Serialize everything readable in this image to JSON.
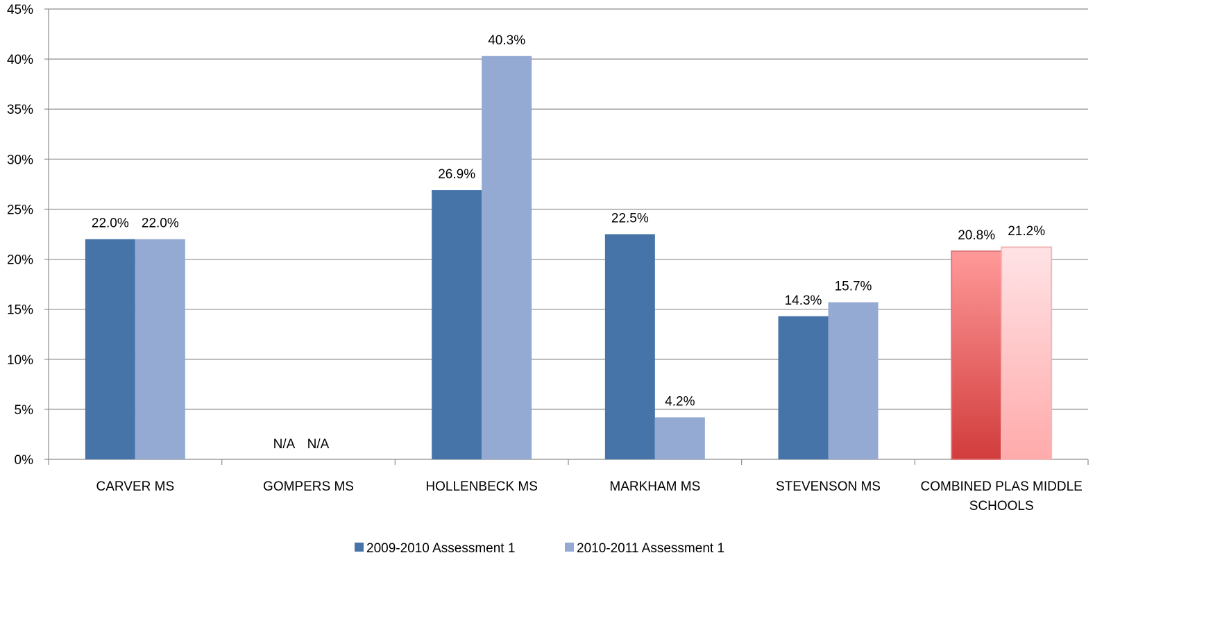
{
  "colors": {
    "series1": "#4674a8",
    "series2": "#95aad2",
    "highlight1_top": "#ff9999",
    "highlight1_bottom": "#d23c3c",
    "highlight2_top": "#ffe3e6",
    "highlight2_bottom": "#ffaaaa",
    "gridline": "#8c8c8c",
    "axis": "#8c8c8c"
  },
  "chart_data": {
    "type": "bar",
    "title": "",
    "xlabel": "",
    "ylabel": "",
    "ylim": [
      0,
      45
    ],
    "y_ticks": [
      {
        "value": 0,
        "label": "0%"
      },
      {
        "value": 5,
        "label": "5%"
      },
      {
        "value": 10,
        "label": "10%"
      },
      {
        "value": 15,
        "label": "15%"
      },
      {
        "value": 20,
        "label": "20%"
      },
      {
        "value": 25,
        "label": "25%"
      },
      {
        "value": 30,
        "label": "30%"
      },
      {
        "value": 35,
        "label": "35%"
      },
      {
        "value": 40,
        "label": "40%"
      },
      {
        "value": 45,
        "label": "45%"
      }
    ],
    "grid": true,
    "legend_position": "bottom",
    "categories": [
      "CARVER MS",
      "GOMPERS MS",
      "HOLLENBECK MS",
      "MARKHAM MS",
      "STEVENSON MS",
      "COMBINED PLAS MIDDLE SCHOOLS"
    ],
    "series": [
      {
        "name": "2009-2010 Assessment 1",
        "values": [
          22.0,
          null,
          26.9,
          22.5,
          14.3,
          20.8
        ],
        "labels": [
          "22.0%",
          "N/A",
          "26.9%",
          "22.5%",
          "14.3%",
          "20.8%"
        ]
      },
      {
        "name": "2010-2011 Assessment 1",
        "values": [
          22.0,
          null,
          40.3,
          4.2,
          15.7,
          21.2
        ],
        "labels": [
          "22.0%",
          "N/A",
          "40.3%",
          "4.2%",
          "15.7%",
          "21.2%"
        ]
      }
    ],
    "highlighted_category": "COMBINED PLAS MIDDLE SCHOOLS"
  }
}
